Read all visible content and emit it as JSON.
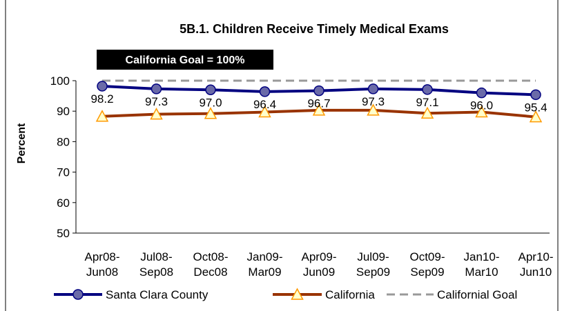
{
  "chart_data": {
    "type": "line",
    "title": "5B.1. Children Receive Timely Medical Exams",
    "annotation": "California Goal =  100%",
    "ylabel": "Percent",
    "categories": [
      "Apr08-\nJun08",
      "Jul08-\nSep08",
      "Oct08-\nDec08",
      "Jan09-\nMar09",
      "Apr09-\nJun09",
      "Jul09-\nSep09",
      "Oct09-\nSep09",
      "Jan10-\nMar10",
      "Apr10-\nJun10"
    ],
    "series": [
      {
        "name": "Santa Clara County",
        "color": "#000080",
        "marker": "circle",
        "marker_color": "#6a6aa8",
        "values": [
          98.2,
          97.3,
          97.0,
          96.4,
          96.7,
          97.3,
          97.1,
          96.0,
          95.4
        ],
        "value_labels": [
          "98.2",
          "97.3",
          "97.0",
          "96.4",
          "96.7",
          "97.3",
          "97.1",
          "96.0",
          "95.4"
        ]
      },
      {
        "name": "California",
        "color": "#993300",
        "marker": "triangle",
        "marker_color": "#ffffcc",
        "marker_edge": "#ff9900",
        "values": [
          88.3,
          89.0,
          89.2,
          89.7,
          90.3,
          90.3,
          89.3,
          89.7,
          88.1
        ]
      },
      {
        "name": "Californial Goal",
        "color": "#999999",
        "dashed": true,
        "values": [
          100,
          100,
          100,
          100,
          100,
          100,
          100,
          100,
          100
        ]
      }
    ],
    "ylim": [
      50,
      100
    ],
    "yticks": [
      50,
      60,
      70,
      80,
      90,
      100
    ]
  }
}
